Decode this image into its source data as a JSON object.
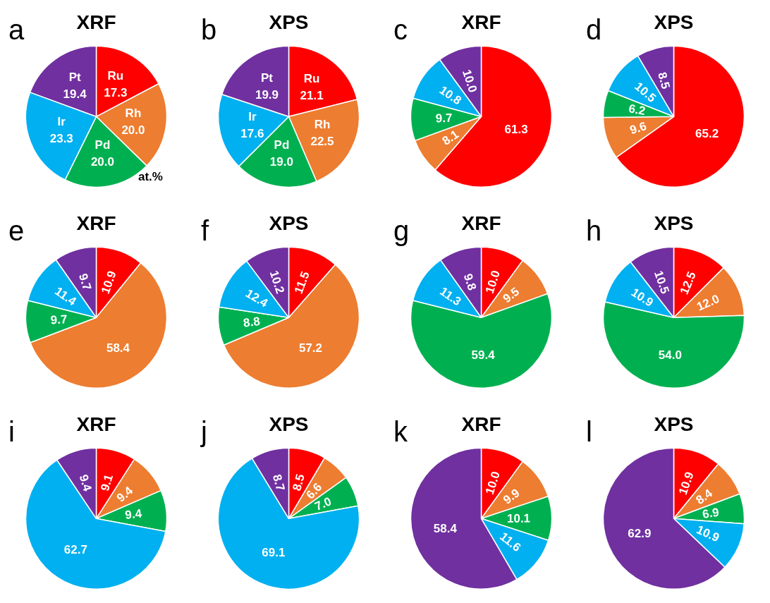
{
  "chart_data": [
    {
      "type": "pie",
      "title": "XRF",
      "annotations": [
        "a",
        "at.%"
      ],
      "categories": [
        "Ru",
        "Rh",
        "Pd",
        "Ir",
        "Pt"
      ],
      "values": [
        17.3,
        20.0,
        20.0,
        23.3,
        19.4
      ],
      "value_labels": [
        "17.3",
        "20.0",
        "20.0",
        "23.3",
        "19.4"
      ],
      "colors": [
        "#ff0000",
        "#ed7d31",
        "#00b050",
        "#00b0f0",
        "#7030a0"
      ]
    },
    {
      "type": "pie",
      "title": "XPS",
      "annotations": [
        "b"
      ],
      "categories": [
        "Ru",
        "Rh",
        "Pd",
        "Ir",
        "Pt"
      ],
      "values": [
        21.1,
        22.5,
        19.0,
        17.6,
        19.9
      ],
      "value_labels": [
        "21.1",
        "22.5",
        "19.0",
        "17.6",
        "19.9"
      ],
      "colors": [
        "#ff0000",
        "#ed7d31",
        "#00b050",
        "#00b0f0",
        "#7030a0"
      ]
    },
    {
      "type": "pie",
      "title": "XRF",
      "annotations": [
        "c"
      ],
      "categories": [
        null,
        null,
        null,
        null,
        null
      ],
      "values": [
        61.3,
        8.1,
        9.7,
        10.8,
        10.0
      ],
      "value_labels": [
        "61.3",
        "8.1",
        "9.7",
        "10.8",
        "10.0"
      ],
      "colors": [
        "#ff0000",
        "#ed7d31",
        "#00b050",
        "#00b0f0",
        "#7030a0"
      ]
    },
    {
      "type": "pie",
      "title": "XPS",
      "annotations": [
        "d"
      ],
      "categories": [
        null,
        null,
        null,
        null,
        null
      ],
      "values": [
        65.2,
        9.6,
        6.2,
        10.5,
        8.5
      ],
      "value_labels": [
        "65.2",
        "9.6",
        "6.2",
        "10.5",
        "8.5"
      ],
      "colors": [
        "#ff0000",
        "#ed7d31",
        "#00b050",
        "#00b0f0",
        "#7030a0"
      ]
    },
    {
      "type": "pie",
      "title": "XRF",
      "annotations": [
        "e"
      ],
      "categories": [
        null,
        null,
        null,
        null,
        null
      ],
      "values": [
        10.9,
        58.4,
        9.7,
        11.4,
        9.7
      ],
      "value_labels": [
        "10.9",
        "58.4",
        "9.7",
        "11.4",
        "9.7"
      ],
      "colors": [
        "#ff0000",
        "#ed7d31",
        "#00b050",
        "#00b0f0",
        "#7030a0"
      ]
    },
    {
      "type": "pie",
      "title": "XPS",
      "annotations": [
        "f"
      ],
      "categories": [
        null,
        null,
        null,
        null,
        null
      ],
      "values": [
        11.5,
        57.2,
        8.8,
        12.4,
        10.2
      ],
      "value_labels": [
        "11.5",
        "57.2",
        "8.8",
        "12.4",
        "10.2"
      ],
      "colors": [
        "#ff0000",
        "#ed7d31",
        "#00b050",
        "#00b0f0",
        "#7030a0"
      ]
    },
    {
      "type": "pie",
      "title": "XRF",
      "annotations": [
        "g"
      ],
      "categories": [
        null,
        null,
        null,
        null,
        null
      ],
      "values": [
        10.0,
        9.5,
        59.4,
        11.3,
        9.8
      ],
      "value_labels": [
        "10.0",
        "9.5",
        "59.4",
        "11.3",
        "9.8"
      ],
      "colors": [
        "#ff0000",
        "#ed7d31",
        "#00b050",
        "#00b0f0",
        "#7030a0"
      ]
    },
    {
      "type": "pie",
      "title": "XPS",
      "annotations": [
        "h"
      ],
      "categories": [
        null,
        null,
        null,
        null,
        null
      ],
      "values": [
        12.5,
        12.0,
        54.0,
        10.9,
        10.5
      ],
      "value_labels": [
        "12.5",
        "12.0",
        "54.0",
        "10.9",
        "10.5"
      ],
      "colors": [
        "#ff0000",
        "#ed7d31",
        "#00b050",
        "#00b0f0",
        "#7030a0"
      ]
    },
    {
      "type": "pie",
      "title": "XRF",
      "annotations": [
        "i"
      ],
      "categories": [
        null,
        null,
        null,
        null,
        null
      ],
      "values": [
        9.1,
        9.4,
        9.4,
        62.7,
        9.4
      ],
      "value_labels": [
        "9.1",
        "9.4",
        "9.4",
        "62.7",
        "9.4"
      ],
      "colors": [
        "#ff0000",
        "#ed7d31",
        "#00b050",
        "#00b0f0",
        "#7030a0"
      ]
    },
    {
      "type": "pie",
      "title": "XPS",
      "annotations": [
        "j"
      ],
      "categories": [
        null,
        null,
        null,
        null,
        null
      ],
      "values": [
        8.5,
        6.6,
        7.0,
        69.1,
        8.7
      ],
      "value_labels": [
        "8.5",
        "6.6",
        "7.0",
        "69.1",
        "8.7"
      ],
      "colors": [
        "#ff0000",
        "#ed7d31",
        "#00b050",
        "#00b0f0",
        "#7030a0"
      ]
    },
    {
      "type": "pie",
      "title": "XRF",
      "annotations": [
        "k"
      ],
      "categories": [
        null,
        null,
        null,
        null,
        null
      ],
      "values": [
        10.0,
        9.9,
        10.1,
        11.6,
        58.4
      ],
      "value_labels": [
        "10.0",
        "9.9",
        "10.1",
        "11.6",
        "58.4"
      ],
      "colors": [
        "#ff0000",
        "#ed7d31",
        "#00b050",
        "#00b0f0",
        "#7030a0"
      ]
    },
    {
      "type": "pie",
      "title": "XPS",
      "annotations": [
        "l"
      ],
      "categories": [
        null,
        null,
        null,
        null,
        null
      ],
      "values": [
        10.9,
        8.4,
        6.9,
        10.9,
        62.9
      ],
      "value_labels": [
        "10.9",
        "8.4",
        "6.9",
        "10.9",
        "62.9"
      ],
      "colors": [
        "#ff0000",
        "#ed7d31",
        "#00b050",
        "#00b0f0",
        "#7030a0"
      ]
    }
  ]
}
